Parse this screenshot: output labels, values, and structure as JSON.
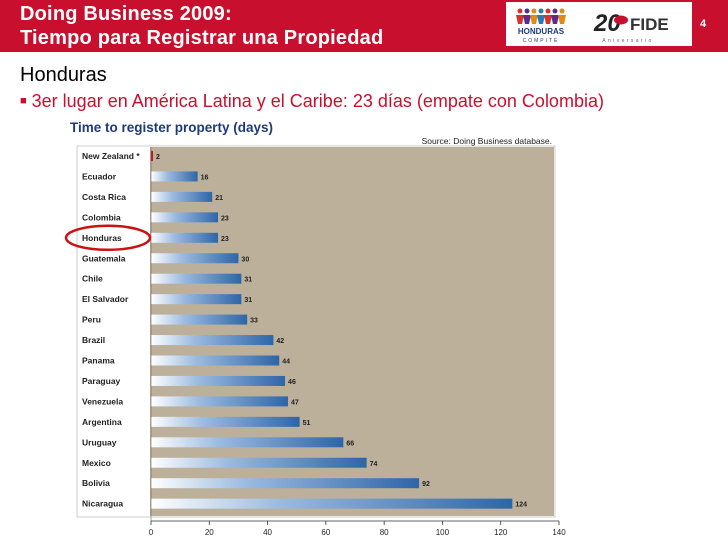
{
  "header": {
    "title_line1": "Doing Business 2009:",
    "title_line2": "Tiempo para Registrar una Propiedad",
    "slide_number": "4",
    "logo_honduras_name": "HONDURAS",
    "logo_honduras_sub": "COMPITE",
    "logo_fide_number": "20",
    "logo_fide_name": "FIDE",
    "logo_fide_sub": "Aniversario"
  },
  "content": {
    "heading": "Honduras",
    "bullet": "3er lugar en América Latina y el Caribe: 23 días (empate con Colombia)"
  },
  "colors": {
    "header_red": "#c8102e",
    "chart_bg": "#bcb09a",
    "bar_blue": "#2e65a8",
    "highlight_red": "#cc1111"
  },
  "chart_data": {
    "type": "bar",
    "orientation": "horizontal",
    "title": "Time to register property (days)",
    "source": "Source: Doing Business database.",
    "categories": [
      "New Zealand *",
      "Ecuador",
      "Costa Rica",
      "Colombia",
      "Honduras",
      "Guatemala",
      "Chile",
      "El Salvador",
      "Peru",
      "Brazil",
      "Panama",
      "Paraguay",
      "Venezuela",
      "Argentina",
      "Uruguay",
      "Mexico",
      "Bolivia",
      "Nicaragua"
    ],
    "values": [
      2,
      16,
      21,
      23,
      23,
      30,
      31,
      31,
      33,
      42,
      44,
      46,
      47,
      51,
      66,
      74,
      92,
      124
    ],
    "value_labels": [
      "2",
      "16",
      "21",
      "23",
      "23",
      "30",
      "31",
      "31",
      "33",
      "42",
      "44",
      "46",
      "47",
      "51",
      "66",
      "74",
      "92",
      "124"
    ],
    "highlighted_category": "Honduras",
    "reference_category": "New Zealand *",
    "xlim": [
      0,
      140
    ],
    "xticks": [
      0,
      20,
      40,
      60,
      80,
      100,
      120,
      140
    ],
    "grid": false
  }
}
